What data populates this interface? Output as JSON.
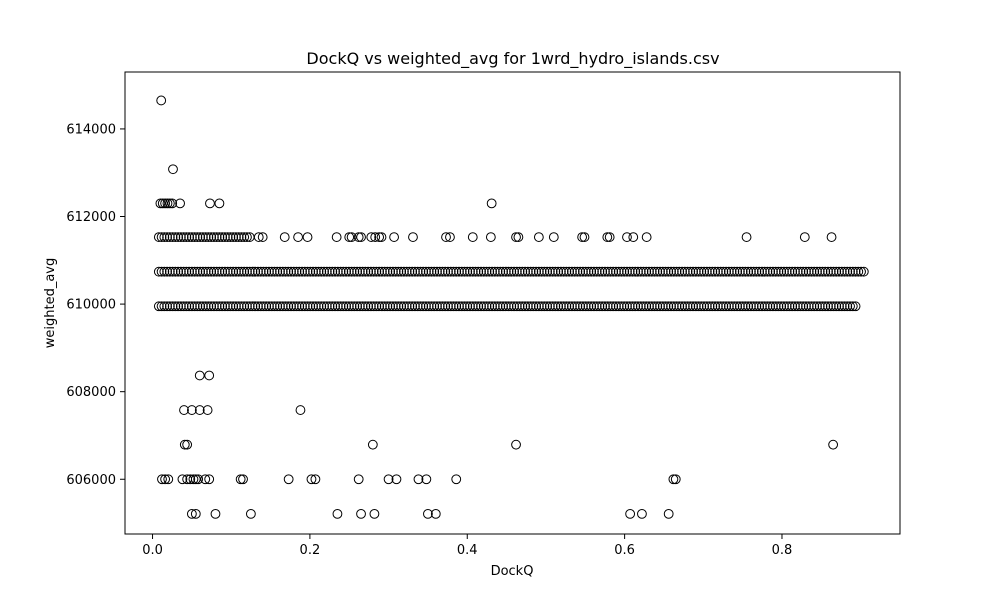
{
  "chart_data": {
    "type": "scatter",
    "title": "DockQ vs weighted_avg for 1wrd_hydro_islands.csv",
    "xlabel": "DockQ",
    "ylabel": "weighted_avg",
    "xlim": [
      -0.035,
      0.95
    ],
    "ylim": [
      604750,
      615300
    ],
    "x_ticks": [
      0.0,
      0.2,
      0.4,
      0.6,
      0.8
    ],
    "x_tick_labels": [
      "0.0",
      "0.2",
      "0.4",
      "0.6",
      "0.8"
    ],
    "y_ticks": [
      606000,
      608000,
      610000,
      612000,
      614000
    ],
    "y_tick_labels": [
      "606000",
      "608000",
      "610000",
      "612000",
      "614000"
    ],
    "marker": "open-circle",
    "marker_color": "#000000",
    "grid": false,
    "bands": [
      {
        "y": 609950,
        "x_start": 0.008,
        "x_end": 0.895,
        "step": 0.0035
      },
      {
        "y": 610740,
        "x_start": 0.008,
        "x_end": 0.905,
        "step": 0.0035
      },
      {
        "y": 611530,
        "x_start": 0.008,
        "x_end": 0.125,
        "step": 0.0035
      }
    ],
    "points": [
      {
        "x": 0.011,
        "y": 614650
      },
      {
        "x": 0.026,
        "y": 613080
      },
      {
        "x": 0.01,
        "y": 612300
      },
      {
        "x": 0.013,
        "y": 612300
      },
      {
        "x": 0.016,
        "y": 612300
      },
      {
        "x": 0.019,
        "y": 612300
      },
      {
        "x": 0.022,
        "y": 612300
      },
      {
        "x": 0.025,
        "y": 612300
      },
      {
        "x": 0.035,
        "y": 612300
      },
      {
        "x": 0.073,
        "y": 612300
      },
      {
        "x": 0.085,
        "y": 612300
      },
      {
        "x": 0.431,
        "y": 612300
      },
      {
        "x": 0.135,
        "y": 611530
      },
      {
        "x": 0.14,
        "y": 611530
      },
      {
        "x": 0.168,
        "y": 611530
      },
      {
        "x": 0.185,
        "y": 611530
      },
      {
        "x": 0.197,
        "y": 611530
      },
      {
        "x": 0.234,
        "y": 611530
      },
      {
        "x": 0.25,
        "y": 611530
      },
      {
        "x": 0.253,
        "y": 611530
      },
      {
        "x": 0.262,
        "y": 611530
      },
      {
        "x": 0.265,
        "y": 611530
      },
      {
        "x": 0.278,
        "y": 611530
      },
      {
        "x": 0.283,
        "y": 611530
      },
      {
        "x": 0.288,
        "y": 611530
      },
      {
        "x": 0.291,
        "y": 611530
      },
      {
        "x": 0.307,
        "y": 611530
      },
      {
        "x": 0.331,
        "y": 611530
      },
      {
        "x": 0.373,
        "y": 611530
      },
      {
        "x": 0.378,
        "y": 611530
      },
      {
        "x": 0.407,
        "y": 611530
      },
      {
        "x": 0.43,
        "y": 611530
      },
      {
        "x": 0.462,
        "y": 611530
      },
      {
        "x": 0.465,
        "y": 611530
      },
      {
        "x": 0.491,
        "y": 611530
      },
      {
        "x": 0.51,
        "y": 611530
      },
      {
        "x": 0.546,
        "y": 611530
      },
      {
        "x": 0.549,
        "y": 611530
      },
      {
        "x": 0.578,
        "y": 611530
      },
      {
        "x": 0.581,
        "y": 611530
      },
      {
        "x": 0.603,
        "y": 611530
      },
      {
        "x": 0.611,
        "y": 611530
      },
      {
        "x": 0.628,
        "y": 611530
      },
      {
        "x": 0.755,
        "y": 611530
      },
      {
        "x": 0.829,
        "y": 611530
      },
      {
        "x": 0.863,
        "y": 611530
      },
      {
        "x": 0.06,
        "y": 608370
      },
      {
        "x": 0.072,
        "y": 608370
      },
      {
        "x": 0.04,
        "y": 607580
      },
      {
        "x": 0.05,
        "y": 607580
      },
      {
        "x": 0.06,
        "y": 607580
      },
      {
        "x": 0.07,
        "y": 607580
      },
      {
        "x": 0.188,
        "y": 607580
      },
      {
        "x": 0.041,
        "y": 606790
      },
      {
        "x": 0.044,
        "y": 606790
      },
      {
        "x": 0.28,
        "y": 606790
      },
      {
        "x": 0.462,
        "y": 606790
      },
      {
        "x": 0.865,
        "y": 606790
      },
      {
        "x": 0.012,
        "y": 606000
      },
      {
        "x": 0.016,
        "y": 606000
      },
      {
        "x": 0.02,
        "y": 606000
      },
      {
        "x": 0.038,
        "y": 606000
      },
      {
        "x": 0.044,
        "y": 606000
      },
      {
        "x": 0.048,
        "y": 606000
      },
      {
        "x": 0.052,
        "y": 606000
      },
      {
        "x": 0.055,
        "y": 606000
      },
      {
        "x": 0.058,
        "y": 606000
      },
      {
        "x": 0.067,
        "y": 606000
      },
      {
        "x": 0.072,
        "y": 606000
      },
      {
        "x": 0.112,
        "y": 606000
      },
      {
        "x": 0.115,
        "y": 606000
      },
      {
        "x": 0.173,
        "y": 606000
      },
      {
        "x": 0.202,
        "y": 606000
      },
      {
        "x": 0.207,
        "y": 606000
      },
      {
        "x": 0.262,
        "y": 606000
      },
      {
        "x": 0.3,
        "y": 606000
      },
      {
        "x": 0.31,
        "y": 606000
      },
      {
        "x": 0.338,
        "y": 606000
      },
      {
        "x": 0.348,
        "y": 606000
      },
      {
        "x": 0.386,
        "y": 606000
      },
      {
        "x": 0.662,
        "y": 606000
      },
      {
        "x": 0.665,
        "y": 606000
      },
      {
        "x": 0.05,
        "y": 605210
      },
      {
        "x": 0.055,
        "y": 605210
      },
      {
        "x": 0.08,
        "y": 605210
      },
      {
        "x": 0.125,
        "y": 605210
      },
      {
        "x": 0.235,
        "y": 605210
      },
      {
        "x": 0.265,
        "y": 605210
      },
      {
        "x": 0.282,
        "y": 605210
      },
      {
        "x": 0.35,
        "y": 605210
      },
      {
        "x": 0.36,
        "y": 605210
      },
      {
        "x": 0.607,
        "y": 605210
      },
      {
        "x": 0.622,
        "y": 605210
      },
      {
        "x": 0.656,
        "y": 605210
      }
    ]
  }
}
